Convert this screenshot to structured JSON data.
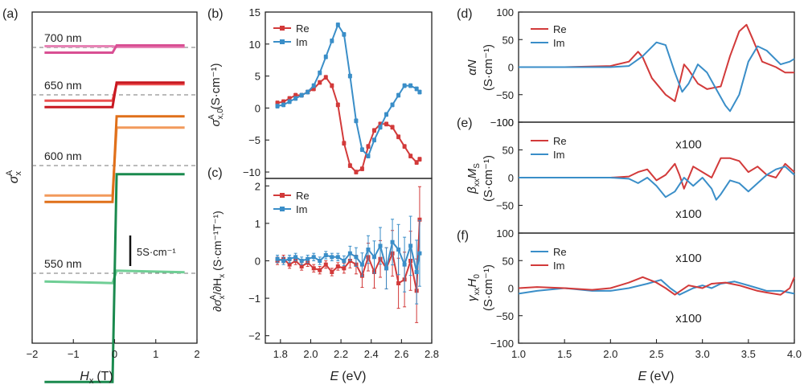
{
  "colors": {
    "red": "#d23a3a",
    "blue": "#3a8ec8",
    "dark_red": "#c81820",
    "pink": "#d94f93",
    "orange": "#e0701a",
    "light_orange": "#f29a5c",
    "green": "#1a8a4e",
    "light_green": "#6fce95"
  },
  "chart_data": [
    {
      "id": "a",
      "panel_label": "(a)",
      "type": "line",
      "xlabel": "H",
      "xlabel_sub": "x",
      "xlabel_unit": "(T)",
      "ylabel": "σ",
      "ylabel_sub": "x",
      "ylabel_sup": "A",
      "xlim": [
        -2,
        2
      ],
      "xticks": [
        "−2",
        "−1",
        "0",
        "1",
        "2"
      ],
      "scale_bar_label": "5S·cm⁻¹",
      "scale_bar_value": 5,
      "series": [
        {
          "name": "700 nm",
          "label": "700 nm",
          "color_key": "pink",
          "baseline": 28.5,
          "amplitude": 1.2
        },
        {
          "name": "650 nm",
          "label": "650 nm",
          "color_key": "dark_red",
          "baseline": 21.0,
          "amplitude": 4.0
        },
        {
          "name": "600 nm",
          "label": "600 nm",
          "color_key": "orange",
          "baseline": 10.0,
          "amplitude": 14.0
        },
        {
          "name": "550 nm",
          "label": "550 nm",
          "color_key": "green",
          "baseline": -7.0,
          "amplitude": 34.0
        }
      ]
    },
    {
      "id": "b",
      "panel_label": "(b)",
      "type": "line",
      "ylabel": "σ",
      "ylabel_sub": "x,0",
      "ylabel_sup": "A",
      "ylabel_unit": "(S·cm⁻¹)",
      "xlim": [
        1.7,
        2.8
      ],
      "ylim": [
        -11,
        15
      ],
      "yticks": [
        "15",
        "10",
        "5",
        "0",
        "−5",
        "−10"
      ],
      "legend": [
        "Re",
        "Im"
      ],
      "series": [
        {
          "name": "Re",
          "color_key": "red",
          "x": [
            1.78,
            1.82,
            1.86,
            1.9,
            1.94,
            1.98,
            2.02,
            2.06,
            2.1,
            2.14,
            2.18,
            2.22,
            2.26,
            2.3,
            2.34,
            2.38,
            2.42,
            2.46,
            2.5,
            2.54,
            2.58,
            2.62,
            2.66,
            2.7,
            2.72
          ],
          "values": [
            0.8,
            1.0,
            1.5,
            2.0,
            2.0,
            2.5,
            3.0,
            4.0,
            4.8,
            3.5,
            0.5,
            -5.5,
            -9.0,
            -10.0,
            -9.5,
            -6.0,
            -3.5,
            -2.5,
            -2.5,
            -3.0,
            -4.5,
            -6.0,
            -7.5,
            -8.5,
            -8.0
          ]
        },
        {
          "name": "Im",
          "color_key": "blue",
          "x": [
            1.78,
            1.82,
            1.86,
            1.9,
            1.94,
            1.98,
            2.02,
            2.06,
            2.1,
            2.14,
            2.18,
            2.22,
            2.26,
            2.3,
            2.34,
            2.38,
            2.42,
            2.46,
            2.5,
            2.54,
            2.58,
            2.62,
            2.66,
            2.7,
            2.72
          ],
          "values": [
            0.3,
            0.5,
            1.0,
            1.5,
            2.0,
            2.5,
            3.5,
            5.5,
            8.0,
            10.5,
            13.0,
            11.5,
            5.0,
            -2.0,
            -6.5,
            -7.5,
            -5.0,
            -3.0,
            -1.0,
            0.5,
            2.0,
            3.5,
            3.5,
            3.0,
            2.5
          ]
        }
      ]
    },
    {
      "id": "c",
      "panel_label": "(c)",
      "type": "line",
      "xlabel": "E",
      "xlabel_unit": "(eV)",
      "ylabel": "∂σ",
      "ylabel_sub": "x",
      "ylabel_sup": "A",
      "ylabel_mid": "/∂H",
      "ylabel_sub2": "x",
      "ylabel_unit": "(S·cm⁻¹T⁻¹)",
      "xlim": [
        1.7,
        2.8
      ],
      "ylim": [
        -2.2,
        2.2
      ],
      "xticks": [
        "1.8",
        "2.0",
        "2.2",
        "2.4",
        "2.6",
        "2.8"
      ],
      "yticks": [
        "2",
        "1",
        "0",
        "−1",
        "−2"
      ],
      "legend": [
        "Re",
        "Im"
      ],
      "series": [
        {
          "name": "Re",
          "color_key": "red",
          "x": [
            1.78,
            1.82,
            1.86,
            1.9,
            1.94,
            1.98,
            2.02,
            2.06,
            2.1,
            2.14,
            2.18,
            2.22,
            2.26,
            2.3,
            2.34,
            2.38,
            2.42,
            2.46,
            2.5,
            2.54,
            2.58,
            2.62,
            2.66,
            2.7,
            2.72
          ],
          "values": [
            0.0,
            0.05,
            -0.1,
            0.0,
            -0.15,
            -0.05,
            -0.2,
            -0.25,
            -0.1,
            -0.3,
            -0.15,
            -0.2,
            0.0,
            -0.1,
            -0.4,
            0.1,
            -0.3,
            0.05,
            -0.2,
            0.2,
            -0.6,
            -0.5,
            0.0,
            -0.8,
            1.1
          ]
        },
        {
          "name": "Im",
          "color_key": "blue",
          "x": [
            1.78,
            1.82,
            1.86,
            1.9,
            1.94,
            1.98,
            2.02,
            2.06,
            2.1,
            2.14,
            2.18,
            2.22,
            2.26,
            2.3,
            2.34,
            2.38,
            2.42,
            2.46,
            2.5,
            2.54,
            2.58,
            2.62,
            2.66,
            2.7,
            2.72
          ],
          "values": [
            0.05,
            0.0,
            0.05,
            0.1,
            0.0,
            0.05,
            0.1,
            0.0,
            0.15,
            0.1,
            0.1,
            0.0,
            0.2,
            0.1,
            -0.1,
            0.3,
            0.1,
            0.4,
            -0.2,
            0.5,
            0.3,
            -0.1,
            0.4,
            -0.3,
            0.2
          ]
        }
      ]
    },
    {
      "id": "d",
      "panel_label": "(d)",
      "type": "line",
      "ylabel": "αN",
      "ylabel_unit": "(S·cm⁻¹)",
      "xlim": [
        1.0,
        4.0
      ],
      "ylim": [
        -100,
        100
      ],
      "yticks": [
        "100",
        "50",
        "0",
        "−50",
        "−100"
      ],
      "legend": [
        "Re",
        "Im"
      ],
      "series": [
        {
          "name": "Re",
          "color_key": "red",
          "x": [
            1.0,
            1.5,
            2.0,
            2.2,
            2.3,
            2.35,
            2.45,
            2.6,
            2.7,
            2.75,
            2.8,
            2.85,
            2.95,
            3.05,
            3.2,
            3.3,
            3.4,
            3.48,
            3.55,
            3.65,
            3.8,
            3.9,
            4.0
          ],
          "values": [
            0,
            0,
            2,
            10,
            28,
            18,
            -20,
            -50,
            -62,
            -30,
            5,
            -5,
            -30,
            -40,
            -35,
            20,
            65,
            77,
            50,
            10,
            0,
            -10,
            -10
          ]
        },
        {
          "name": "Im",
          "color_key": "blue",
          "x": [
            1.0,
            1.5,
            2.0,
            2.2,
            2.35,
            2.5,
            2.6,
            2.7,
            2.78,
            2.85,
            2.95,
            3.05,
            3.15,
            3.25,
            3.3,
            3.4,
            3.5,
            3.6,
            3.7,
            3.85,
            3.95,
            4.0
          ],
          "values": [
            0,
            0,
            0,
            2,
            20,
            45,
            40,
            -10,
            -45,
            -30,
            5,
            -10,
            -40,
            -70,
            -80,
            -50,
            10,
            38,
            30,
            5,
            10,
            15
          ]
        }
      ]
    },
    {
      "id": "e",
      "panel_label": "(e)",
      "type": "line",
      "ylabel": "β",
      "ylabel_sub": "xx",
      "ylabel_mid": "M",
      "ylabel_sub2": "S",
      "ylabel_unit": "(S·cm⁻¹)",
      "xlim": [
        1.0,
        4.0
      ],
      "ylim": [
        -100,
        100
      ],
      "yticks": [
        "100",
        "50",
        "0",
        "−50"
      ],
      "legend": [
        "Re",
        "Im"
      ],
      "annotations": [
        {
          "text": "x100",
          "color_key": "red",
          "x": 2.85,
          "y": 60
        },
        {
          "text": "x100",
          "color_key": "blue",
          "x": 2.85,
          "y": -65
        }
      ],
      "series": [
        {
          "name": "Re",
          "color_key": "red",
          "x": [
            1.0,
            1.5,
            2.0,
            2.2,
            2.3,
            2.4,
            2.5,
            2.6,
            2.7,
            2.75,
            2.8,
            2.9,
            3.0,
            3.1,
            3.2,
            3.3,
            3.4,
            3.5,
            3.6,
            3.7,
            3.8,
            3.9,
            4.0
          ],
          "values": [
            0,
            0,
            0,
            2,
            10,
            15,
            -5,
            5,
            25,
            5,
            -20,
            20,
            10,
            0,
            35,
            35,
            30,
            10,
            20,
            5,
            0,
            25,
            10
          ]
        },
        {
          "name": "Im",
          "color_key": "blue",
          "x": [
            1.0,
            1.5,
            2.0,
            2.2,
            2.3,
            2.4,
            2.5,
            2.6,
            2.7,
            2.8,
            2.9,
            3.0,
            3.1,
            3.15,
            3.2,
            3.3,
            3.4,
            3.5,
            3.6,
            3.7,
            3.8,
            3.9,
            4.0
          ],
          "values": [
            0,
            0,
            0,
            -2,
            -10,
            0,
            -15,
            -35,
            -25,
            0,
            -15,
            0,
            -20,
            -40,
            -30,
            -5,
            -10,
            -25,
            -10,
            5,
            15,
            20,
            5
          ]
        }
      ]
    },
    {
      "id": "f",
      "panel_label": "(f)",
      "type": "line",
      "xlabel": "E",
      "xlabel_unit": "(eV)",
      "ylabel": "γ",
      "ylabel_sub": "xx",
      "ylabel_mid": "H",
      "ylabel_sub2": "0",
      "ylabel_unit": "(S·cm⁻¹)",
      "xlim": [
        1.0,
        4.0
      ],
      "ylim": [
        -100,
        100
      ],
      "xticks": [
        "1.0",
        "1.5",
        "2.0",
        "2.5",
        "3.0",
        "3.5",
        "4.0"
      ],
      "yticks": [
        "100",
        "50",
        "0",
        "−50",
        "−100"
      ],
      "legend": [
        "Re",
        "Im"
      ],
      "annotations": [
        {
          "text": "x100",
          "color_key": "red",
          "x": 2.85,
          "y": 55
        },
        {
          "text": "x100",
          "color_key": "blue",
          "x": 2.85,
          "y": -55
        }
      ],
      "series": [
        {
          "name": "Re",
          "color_key": "blue",
          "x": [
            1.0,
            1.2,
            1.5,
            1.8,
            2.0,
            2.2,
            2.4,
            2.55,
            2.65,
            2.75,
            2.9,
            3.0,
            3.1,
            3.2,
            3.35,
            3.5,
            3.6,
            3.7,
            3.85,
            4.0
          ],
          "values": [
            -10,
            -5,
            0,
            -5,
            -5,
            0,
            8,
            15,
            0,
            -12,
            0,
            5,
            0,
            8,
            12,
            5,
            0,
            -5,
            -5,
            -10
          ]
        },
        {
          "name": "Im",
          "color_key": "red",
          "x": [
            1.0,
            1.2,
            1.5,
            1.8,
            2.0,
            2.1,
            2.2,
            2.35,
            2.5,
            2.6,
            2.7,
            2.85,
            3.0,
            3.1,
            3.25,
            3.4,
            3.5,
            3.6,
            3.7,
            3.85,
            3.95,
            4.0
          ],
          "values": [
            0,
            2,
            0,
            -3,
            0,
            5,
            10,
            20,
            10,
            0,
            -12,
            5,
            0,
            8,
            10,
            5,
            0,
            -5,
            -8,
            -12,
            0,
            20
          ]
        }
      ]
    }
  ]
}
